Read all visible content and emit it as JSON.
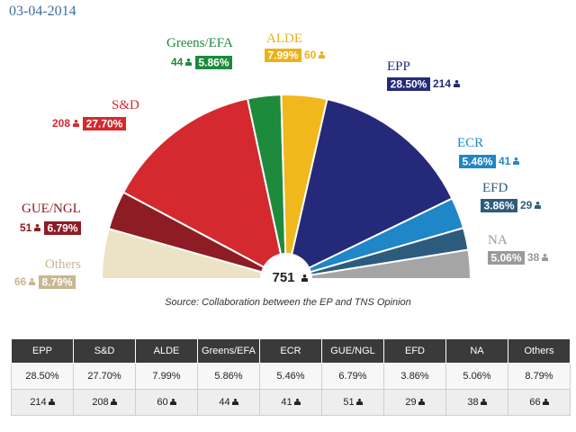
{
  "date": "03-04-2014",
  "source": "Source: Collaboration between the EP and TNS Opinion",
  "total": "751",
  "chart_data": {
    "type": "pie",
    "subtype": "parliament-hemicycle",
    "total_seats": 751,
    "parties": [
      {
        "name": "Others",
        "pct": "8.79%",
        "pct_value": 8.79,
        "seats": 66,
        "color": "#ece3c4",
        "text_color": "#c8b792"
      },
      {
        "name": "GUE/NGL",
        "pct": "6.79%",
        "pct_value": 6.79,
        "seats": 51,
        "color": "#8e1c24",
        "text_color": "#8e1c24"
      },
      {
        "name": "S&D",
        "pct": "27.70%",
        "pct_value": 27.7,
        "seats": 208,
        "color": "#d42a2f",
        "text_color": "#d42a2f"
      },
      {
        "name": "Greens/EFA",
        "pct": "5.86%",
        "pct_value": 5.86,
        "seats": 44,
        "color": "#1e8a3c",
        "text_color": "#1e8a3c"
      },
      {
        "name": "ALDE",
        "pct": "7.99%",
        "pct_value": 7.99,
        "seats": 60,
        "color": "#f0b81c",
        "text_color": "#e9b21a"
      },
      {
        "name": "EPP",
        "pct": "28.50%",
        "pct_value": 28.5,
        "seats": 214,
        "color": "#24297a",
        "text_color": "#24297a"
      },
      {
        "name": "ECR",
        "pct": "5.46%",
        "pct_value": 5.46,
        "seats": 41,
        "color": "#1f86c8",
        "text_color": "#1f86c8"
      },
      {
        "name": "EFD",
        "pct": "3.86%",
        "pct_value": 3.86,
        "seats": 29,
        "color": "#2d5b7d",
        "text_color": "#2d5b7d"
      },
      {
        "name": "NA",
        "pct": "5.06%",
        "pct_value": 5.06,
        "seats": 38,
        "color": "#a5a5a5",
        "text_color": "#9a9a9a"
      }
    ]
  },
  "table": {
    "headers": [
      "EPP",
      "S&D",
      "ALDE",
      "Greens/EFA",
      "ECR",
      "GUE/NGL",
      "EFD",
      "NA",
      "Others"
    ],
    "pct": [
      "28.50%",
      "27.70%",
      "7.99%",
      "5.86%",
      "5.46%",
      "6.79%",
      "3.86%",
      "5.06%",
      "8.79%"
    ],
    "seats": [
      "214",
      "208",
      "60",
      "44",
      "41",
      "51",
      "29",
      "38",
      "66"
    ]
  }
}
